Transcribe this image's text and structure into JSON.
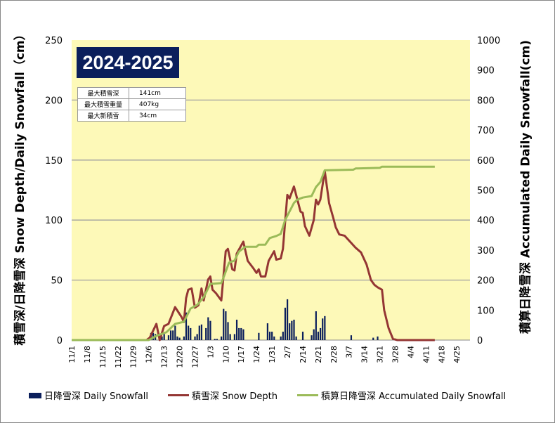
{
  "title": "2024-2025",
  "stats": [
    {
      "label": "最大積雪深",
      "value": "141cm"
    },
    {
      "label": "最大積雪重量",
      "value": "407kg"
    },
    {
      "label": "最大新積雪",
      "value": "34cm"
    }
  ],
  "colors": {
    "plot_bg": "#fdf9b8",
    "bars": "#0b1f5c",
    "depth": "#943634",
    "accum": "#9bbb59",
    "title_bg": "#0b1f5c"
  },
  "chart_data": {
    "type": "bar+line",
    "title": "2024-2025",
    "xlabel": "",
    "ylabel_left": "積雪深/日降雪深 Snow Depth/Daily Snowfall（cm）",
    "ylabel_right": "積算日降雪深 Accumulated Daily Snowfall(cm)",
    "x_unit": "days since 11/1",
    "xlim": [
      0,
      181
    ],
    "ylim_left": [
      0,
      250
    ],
    "ylim_right": [
      0,
      1000
    ],
    "yticks_left": [
      "0",
      "50",
      "100",
      "150",
      "200",
      "250"
    ],
    "yticks_right": [
      "0",
      "100",
      "200",
      "300",
      "400",
      "500",
      "600",
      "700",
      "800",
      "900",
      "1000"
    ],
    "xtick_labels": [
      "11/1",
      "11/8",
      "11/15",
      "11/22",
      "11/29",
      "12/6",
      "12/13",
      "12/20",
      "12/27",
      "1/3",
      "1/10",
      "1/17",
      "1/24",
      "1/31",
      "2/7",
      "2/14",
      "2/21",
      "2/28",
      "3/7",
      "3/14",
      "3/21",
      "3/28",
      "4/4",
      "4/11",
      "4/18",
      "4/25"
    ],
    "grid": true,
    "legend_position": "bottom",
    "series": [
      {
        "name": "日降雪深 Daily Snowfall",
        "type": "bar",
        "axis": "left",
        "points": [
          [
            36,
            6
          ],
          [
            37,
            6
          ],
          [
            38,
            5
          ],
          [
            41,
            3
          ],
          [
            42,
            5
          ],
          [
            44,
            4
          ],
          [
            45,
            8
          ],
          [
            46,
            8
          ],
          [
            47,
            12
          ],
          [
            48,
            3
          ],
          [
            49,
            2
          ],
          [
            51,
            3
          ],
          [
            52,
            23
          ],
          [
            53,
            12
          ],
          [
            54,
            10
          ],
          [
            56,
            3
          ],
          [
            57,
            5
          ],
          [
            58,
            12
          ],
          [
            59,
            13
          ],
          [
            61,
            10
          ],
          [
            62,
            19
          ],
          [
            63,
            16
          ],
          [
            65,
            1
          ],
          [
            66,
            1
          ],
          [
            68,
            3
          ],
          [
            69,
            26
          ],
          [
            70,
            24
          ],
          [
            71,
            15
          ],
          [
            72,
            5
          ],
          [
            74,
            5
          ],
          [
            75,
            17
          ],
          [
            76,
            10
          ],
          [
            77,
            10
          ],
          [
            78,
            9
          ],
          [
            85,
            6
          ],
          [
            89,
            14
          ],
          [
            90,
            7
          ],
          [
            91,
            7
          ],
          [
            92,
            3
          ],
          [
            95,
            3
          ],
          [
            96,
            7
          ],
          [
            97,
            27
          ],
          [
            98,
            34
          ],
          [
            99,
            14
          ],
          [
            100,
            16
          ],
          [
            101,
            17
          ],
          [
            102,
            3
          ],
          [
            105,
            7
          ],
          [
            109,
            4
          ],
          [
            110,
            9
          ],
          [
            111,
            24
          ],
          [
            112,
            7
          ],
          [
            113,
            10
          ],
          [
            114,
            18
          ],
          [
            115,
            20
          ],
          [
            127,
            4
          ],
          [
            137,
            2
          ],
          [
            139,
            3
          ]
        ]
      },
      {
        "name": "積雪深 Snow Depth",
        "type": "line",
        "axis": "left",
        "points": [
          [
            0,
            0
          ],
          [
            34,
            0
          ],
          [
            35.5,
            2
          ],
          [
            38.5,
            13.5
          ],
          [
            40,
            0
          ],
          [
            42,
            11.7
          ],
          [
            44,
            13.5
          ],
          [
            47,
            27.5
          ],
          [
            50,
            19
          ],
          [
            51,
            15
          ],
          [
            52,
            35
          ],
          [
            53,
            42
          ],
          [
            54.5,
            43
          ],
          [
            56,
            27
          ],
          [
            57.6,
            29
          ],
          [
            59,
            43
          ],
          [
            60,
            33
          ],
          [
            62,
            50.5
          ],
          [
            63,
            53
          ],
          [
            64,
            42
          ],
          [
            65.6,
            39
          ],
          [
            68,
            33
          ],
          [
            70,
            74
          ],
          [
            71,
            76
          ],
          [
            73,
            59
          ],
          [
            74,
            58
          ],
          [
            75,
            72
          ],
          [
            78,
            82
          ],
          [
            80,
            66
          ],
          [
            82.5,
            60
          ],
          [
            84,
            56
          ],
          [
            85,
            59
          ],
          [
            86,
            53
          ],
          [
            88,
            53
          ],
          [
            89.5,
            66
          ],
          [
            92,
            74
          ],
          [
            93,
            67
          ],
          [
            95,
            68
          ],
          [
            96,
            76
          ],
          [
            98,
            121
          ],
          [
            99,
            118
          ],
          [
            101,
            128
          ],
          [
            104,
            107
          ],
          [
            105,
            106
          ],
          [
            106,
            95
          ],
          [
            108,
            87
          ],
          [
            110,
            100
          ],
          [
            111,
            117
          ],
          [
            112,
            113
          ],
          [
            113,
            117
          ],
          [
            115,
            141
          ],
          [
            117,
            114
          ],
          [
            119,
            101
          ],
          [
            120,
            94
          ],
          [
            121.6,
            88
          ],
          [
            124,
            87
          ],
          [
            127,
            81
          ],
          [
            129,
            77
          ],
          [
            131.5,
            73
          ],
          [
            134,
            63
          ],
          [
            136,
            50
          ],
          [
            137.6,
            46
          ],
          [
            139,
            44
          ],
          [
            141,
            42
          ],
          [
            142,
            25
          ],
          [
            144,
            10
          ],
          [
            146,
            1
          ],
          [
            148,
            0
          ],
          [
            165,
            0
          ]
        ]
      },
      {
        "name": "積算日降雪深 Accumulated Daily Snowfall",
        "type": "line",
        "axis": "right",
        "points": [
          [
            0,
            0
          ],
          [
            35,
            0
          ],
          [
            38.5,
            14
          ],
          [
            43,
            26
          ],
          [
            47,
            54
          ],
          [
            51,
            61
          ],
          [
            54,
            105
          ],
          [
            57,
            117
          ],
          [
            60,
            143
          ],
          [
            63,
            187
          ],
          [
            68,
            190
          ],
          [
            69.5,
            218
          ],
          [
            71.5,
            258
          ],
          [
            74,
            265
          ],
          [
            76,
            295
          ],
          [
            79,
            311
          ],
          [
            84,
            311
          ],
          [
            85,
            318
          ],
          [
            88,
            318
          ],
          [
            90,
            340
          ],
          [
            93,
            347
          ],
          [
            95,
            354
          ],
          [
            97,
            400
          ],
          [
            101,
            457
          ],
          [
            102.5,
            468
          ],
          [
            105,
            475
          ],
          [
            109,
            480
          ],
          [
            111,
            510
          ],
          [
            113,
            527
          ],
          [
            115,
            566
          ],
          [
            128,
            568
          ],
          [
            129,
            572
          ],
          [
            140,
            574
          ],
          [
            141,
            578
          ],
          [
            165,
            578
          ]
        ]
      }
    ]
  },
  "legend": [
    "日降雪深 Daily Snowfall",
    "積雪深 Snow Depth",
    "積算日降雪深 Accumulated Daily Snowfall"
  ]
}
